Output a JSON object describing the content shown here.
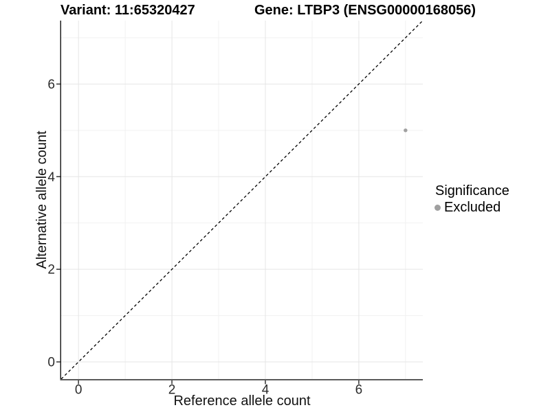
{
  "chart_data": {
    "type": "scatter",
    "title_left": "Variant: 11:65320427",
    "title_right": "Gene: LTBP3 (ENSG00000168056)",
    "xlabel": "Reference allele count",
    "ylabel": "Alternative allele count",
    "xlim": [
      -0.37,
      7.37
    ],
    "ylim": [
      -0.37,
      7.37
    ],
    "grid": true,
    "x_ticks": {
      "major": [
        0,
        2,
        4,
        6
      ],
      "minor": [
        1,
        3,
        5,
        7
      ]
    },
    "y_ticks": {
      "major": [
        0,
        2,
        4,
        6
      ],
      "minor": [
        1,
        3,
        5,
        7
      ]
    },
    "points": [
      {
        "x": 7,
        "y": 5,
        "significance": "Excluded",
        "color": "#a0a0a0"
      }
    ],
    "identity_line": {
      "type": "y=x",
      "style": "dashed",
      "color": "#000000",
      "from": [
        -0.37,
        -0.37
      ],
      "to": [
        7.37,
        7.37
      ]
    },
    "legend": {
      "title": "Significance",
      "position": "right",
      "entries": [
        {
          "label": "Excluded",
          "color": "#a0a0a0"
        }
      ]
    }
  },
  "style": {
    "background": "#ffffff",
    "grid_major_color": "#e5e5e5",
    "grid_minor_color": "#f1f1f1",
    "y_axis_line_color": "#1f1f1f",
    "x_axis_line_color": "#5a5a5a",
    "tick_mark_color": "#333333",
    "tick_label_color": "#2b2b2b",
    "tick_font_size": 19,
    "point_radius": 2.7,
    "legend_dot_color": "#a0a0a0"
  }
}
